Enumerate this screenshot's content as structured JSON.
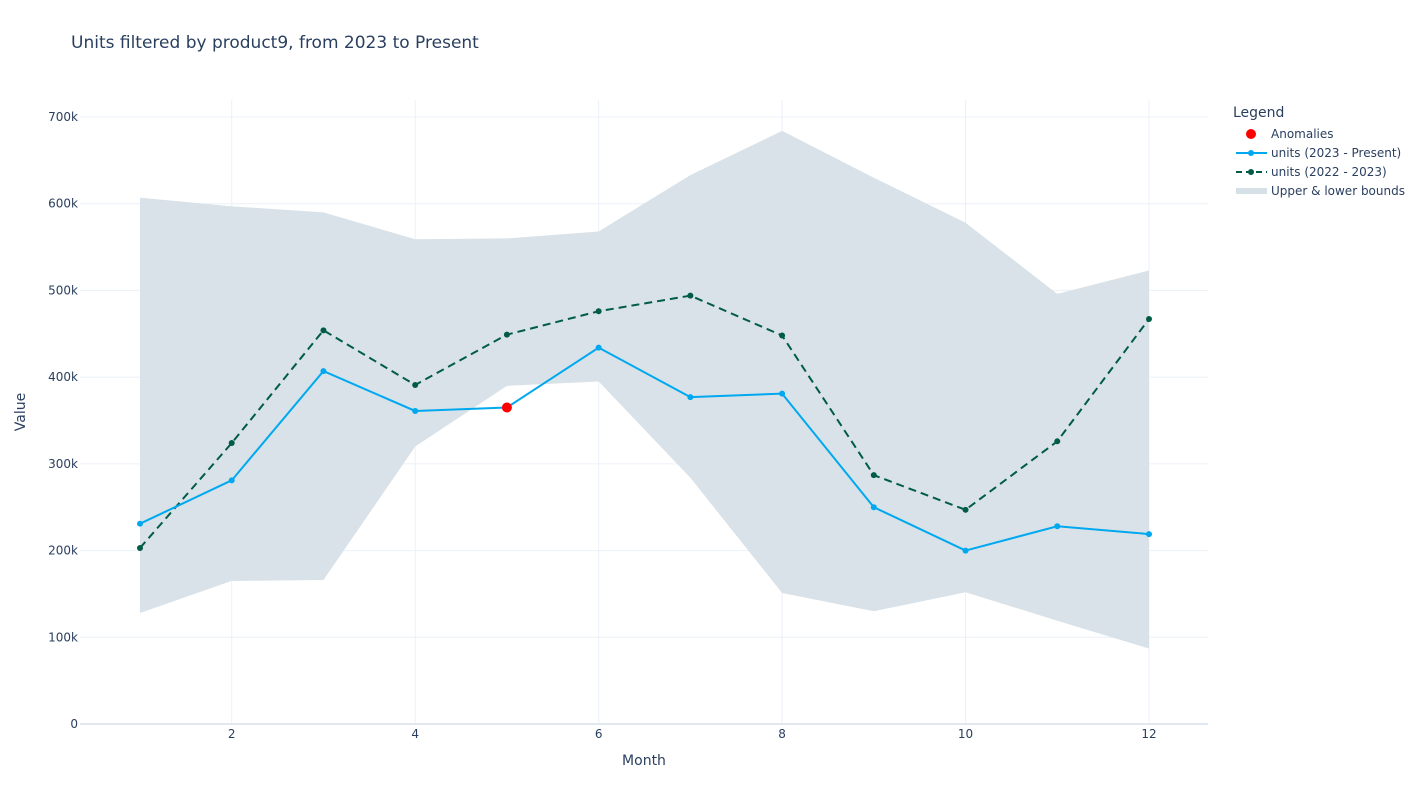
{
  "chart_data": {
    "type": "line",
    "title": "Units filtered by product9, from 2023 to Present",
    "xlabel": "Month",
    "ylabel": "Value",
    "xlim": [
      0.4,
      12.6
    ],
    "ylim": [
      0,
      720000
    ],
    "x_ticks": [
      2,
      4,
      6,
      8,
      10,
      12
    ],
    "y_ticks": [
      0,
      100000,
      200000,
      300000,
      400000,
      500000,
      600000,
      700000
    ],
    "y_tick_labels": [
      "0",
      "100k",
      "200k",
      "300k",
      "400k",
      "500k",
      "600k",
      "700k"
    ],
    "grid": true,
    "x": [
      1,
      2,
      3,
      4,
      5,
      6,
      7,
      8,
      9,
      10,
      11,
      12
    ],
    "series": [
      {
        "name": "units (2023 - Present)",
        "color": "#00a8f0",
        "style": "solid",
        "values": [
          231000,
          281000,
          407000,
          361000,
          365000,
          434000,
          377000,
          381000,
          250000,
          200000,
          228000,
          219000
        ]
      },
      {
        "name": "units (2022 - 2023)",
        "color": "#005c45",
        "style": "dashed",
        "values": [
          203000,
          324000,
          454000,
          391000,
          449000,
          476000,
          494000,
          448000,
          287000,
          247000,
          326000,
          467000
        ]
      }
    ],
    "bounds": {
      "name": "Upper & lower bounds",
      "color": "#d6e0e7",
      "upper": [
        607000,
        597000,
        590000,
        559000,
        560000,
        568000,
        633000,
        684000,
        630000,
        578000,
        496000,
        523000
      ],
      "lower": [
        128000,
        165000,
        166000,
        320000,
        390000,
        395000,
        284000,
        151000,
        130000,
        152000,
        119000,
        87000
      ]
    },
    "anomalies": {
      "name": "Anomalies",
      "color": "#ff0000",
      "points": [
        {
          "x": 5,
          "y": 365000
        }
      ]
    },
    "legend": {
      "title": "Legend",
      "position": "top-right-outside"
    }
  }
}
